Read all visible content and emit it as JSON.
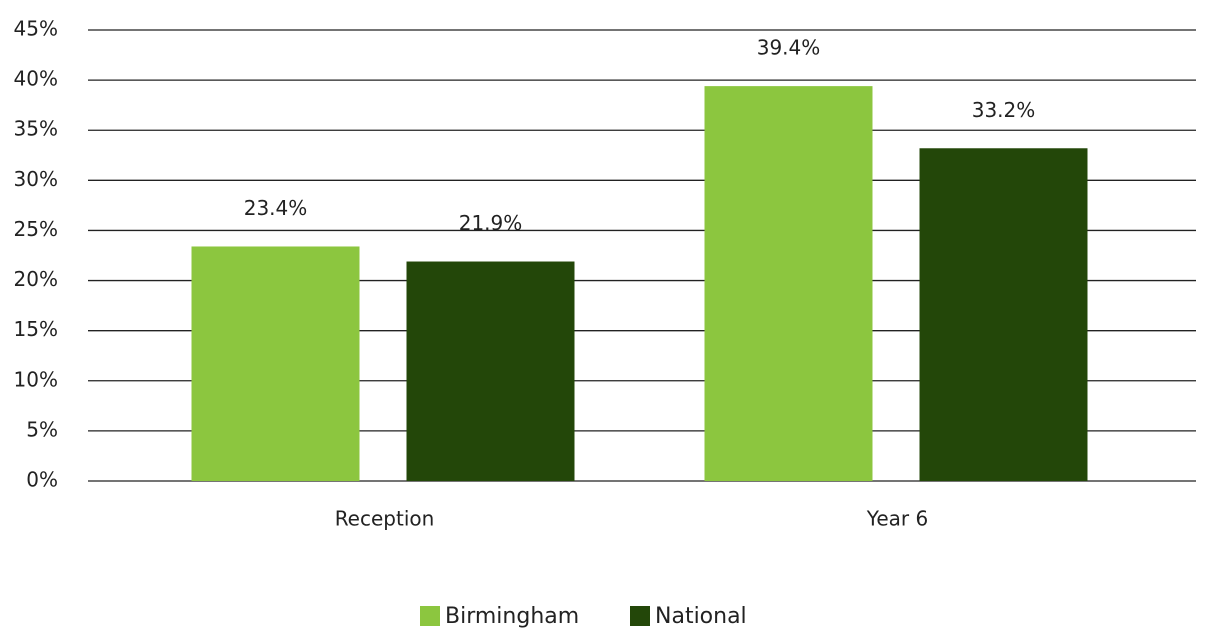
{
  "chart_data": {
    "type": "bar",
    "categories": [
      "Reception",
      "Year 6"
    ],
    "series": [
      {
        "name": "Birmingham",
        "color": "#8cc63f",
        "values": [
          23.4,
          39.4
        ],
        "value_labels": [
          "23.4%",
          "39.4%"
        ]
      },
      {
        "name": "National",
        "color": "#234709",
        "values": [
          21.9,
          33.2
        ],
        "value_labels": [
          "21.9%",
          "33.2%"
        ]
      }
    ],
    "ylim": [
      0,
      45
    ],
    "yticks": [
      {
        "value": 0,
        "label": "0%"
      },
      {
        "value": 5,
        "label": "5%"
      },
      {
        "value": 10,
        "label": "10%"
      },
      {
        "value": 15,
        "label": "15%"
      },
      {
        "value": 20,
        "label": "20%"
      },
      {
        "value": 25,
        "label": "25%"
      },
      {
        "value": 30,
        "label": "30%"
      },
      {
        "value": 35,
        "label": "35%"
      },
      {
        "value": 40,
        "label": "40%"
      },
      {
        "value": 45,
        "label": "45%"
      }
    ],
    "grid": true,
    "legend": "bottom"
  }
}
